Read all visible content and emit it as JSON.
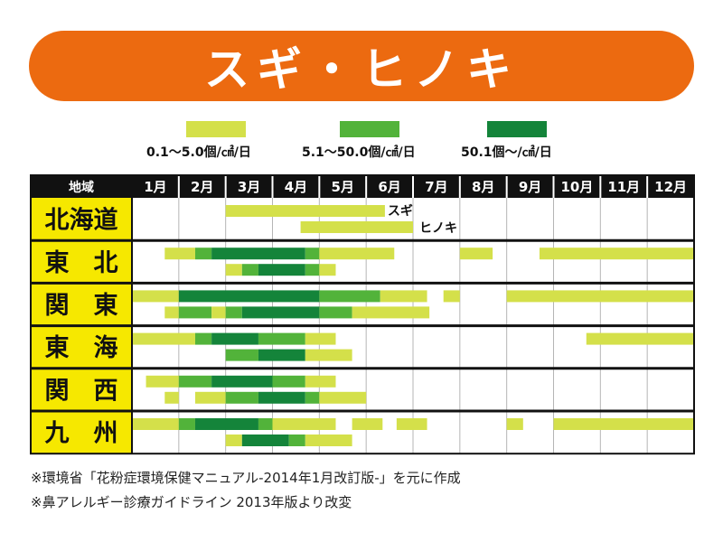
{
  "title": "スギ・ヒノキ",
  "colors": {
    "banner": "#ec6a10",
    "header_bg": "#111111",
    "region_bg": "#f6e800",
    "level1": "#d4e04a",
    "level2": "#52b33a",
    "level3": "#14843a"
  },
  "legend": [
    {
      "label": "0.1～5.0個/㎠/日",
      "level": 1
    },
    {
      "label": "5.1～50.0個/㎠/日",
      "level": 2
    },
    {
      "label": "50.1個～/㎠/日",
      "level": 3
    }
  ],
  "footnotes": [
    "※環境省「花粉症環境保健マニュアル-2014年1月改訂版-」を元に作成",
    "※鼻アレルギー診療ガイドライン 2013年版より改変"
  ],
  "chart_data": {
    "type": "gantt",
    "header_region": "地域",
    "months": [
      "1月",
      "2月",
      "3月",
      "4月",
      "5月",
      "6月",
      "7月",
      "8月",
      "9月",
      "10月",
      "11月",
      "12月"
    ],
    "series_labels": {
      "sugi": "スギ",
      "hinoki": "ヒノキ"
    },
    "regions": [
      {
        "name": "北海道",
        "sugi": [
          {
            "start": 3.0,
            "end": 6.4,
            "level": 1
          }
        ],
        "hinoki": [
          {
            "start": 4.6,
            "end": 7.0,
            "level": 1
          }
        ]
      },
      {
        "name": "東　北",
        "sugi": [
          {
            "start": 1.7,
            "end": 2.35,
            "level": 1
          },
          {
            "start": 2.35,
            "end": 2.7,
            "level": 2
          },
          {
            "start": 2.7,
            "end": 4.7,
            "level": 3
          },
          {
            "start": 4.7,
            "end": 5.0,
            "level": 2
          },
          {
            "start": 5.0,
            "end": 6.6,
            "level": 1
          },
          {
            "start": 8.0,
            "end": 8.7,
            "level": 1
          },
          {
            "start": 9.7,
            "end": 13.0,
            "level": 1
          }
        ],
        "hinoki": [
          {
            "start": 3.0,
            "end": 3.35,
            "level": 1
          },
          {
            "start": 3.35,
            "end": 3.7,
            "level": 2
          },
          {
            "start": 3.7,
            "end": 4.7,
            "level": 3
          },
          {
            "start": 4.7,
            "end": 5.0,
            "level": 2
          },
          {
            "start": 5.0,
            "end": 5.35,
            "level": 1
          }
        ]
      },
      {
        "name": "関　東",
        "sugi": [
          {
            "start": 1.0,
            "end": 2.0,
            "level": 1
          },
          {
            "start": 2.0,
            "end": 5.0,
            "level": 3
          },
          {
            "start": 5.0,
            "end": 6.3,
            "level": 2
          },
          {
            "start": 6.3,
            "end": 7.3,
            "level": 1
          },
          {
            "start": 7.65,
            "end": 8.0,
            "level": 1
          },
          {
            "start": 9.0,
            "end": 13.0,
            "level": 1
          }
        ],
        "hinoki": [
          {
            "start": 1.7,
            "end": 2.0,
            "level": 1
          },
          {
            "start": 2.0,
            "end": 2.7,
            "level": 2
          },
          {
            "start": 2.7,
            "end": 3.0,
            "level": 1
          },
          {
            "start": 3.0,
            "end": 3.35,
            "level": 2
          },
          {
            "start": 3.35,
            "end": 5.0,
            "level": 3
          },
          {
            "start": 5.0,
            "end": 5.7,
            "level": 2
          },
          {
            "start": 5.7,
            "end": 7.35,
            "level": 1
          }
        ]
      },
      {
        "name": "東　海",
        "sugi": [
          {
            "start": 1.0,
            "end": 2.35,
            "level": 1
          },
          {
            "start": 2.35,
            "end": 2.7,
            "level": 2
          },
          {
            "start": 2.7,
            "end": 3.7,
            "level": 3
          },
          {
            "start": 3.7,
            "end": 4.7,
            "level": 2
          },
          {
            "start": 4.7,
            "end": 5.35,
            "level": 1
          },
          {
            "start": 10.7,
            "end": 13.0,
            "level": 1
          }
        ],
        "hinoki": [
          {
            "start": 3.0,
            "end": 3.7,
            "level": 2
          },
          {
            "start": 3.7,
            "end": 4.7,
            "level": 3
          },
          {
            "start": 4.7,
            "end": 5.7,
            "level": 1
          }
        ]
      },
      {
        "name": "関　西",
        "sugi": [
          {
            "start": 1.3,
            "end": 2.0,
            "level": 1
          },
          {
            "start": 2.0,
            "end": 2.7,
            "level": 2
          },
          {
            "start": 2.7,
            "end": 4.0,
            "level": 3
          },
          {
            "start": 4.0,
            "end": 4.7,
            "level": 2
          },
          {
            "start": 4.7,
            "end": 5.35,
            "level": 1
          }
        ],
        "hinoki": [
          {
            "start": 1.7,
            "end": 2.0,
            "level": 1
          },
          {
            "start": 2.35,
            "end": 3.0,
            "level": 1
          },
          {
            "start": 3.0,
            "end": 3.7,
            "level": 2
          },
          {
            "start": 3.7,
            "end": 4.7,
            "level": 3
          },
          {
            "start": 4.7,
            "end": 5.0,
            "level": 2
          },
          {
            "start": 5.0,
            "end": 6.0,
            "level": 1
          }
        ]
      },
      {
        "name": "九　州",
        "sugi": [
          {
            "start": 1.0,
            "end": 2.0,
            "level": 1
          },
          {
            "start": 2.0,
            "end": 2.35,
            "level": 2
          },
          {
            "start": 2.35,
            "end": 3.7,
            "level": 3
          },
          {
            "start": 3.7,
            "end": 4.0,
            "level": 2
          },
          {
            "start": 4.0,
            "end": 5.35,
            "level": 1
          },
          {
            "start": 5.7,
            "end": 6.35,
            "level": 1
          },
          {
            "start": 6.65,
            "end": 7.3,
            "level": 1
          },
          {
            "start": 9.0,
            "end": 9.35,
            "level": 1
          },
          {
            "start": 10.0,
            "end": 13.0,
            "level": 1
          }
        ],
        "hinoki": [
          {
            "start": 3.0,
            "end": 3.35,
            "level": 1
          },
          {
            "start": 3.35,
            "end": 4.35,
            "level": 3
          },
          {
            "start": 4.35,
            "end": 4.7,
            "level": 2
          },
          {
            "start": 4.7,
            "end": 5.7,
            "level": 1
          }
        ]
      }
    ]
  }
}
